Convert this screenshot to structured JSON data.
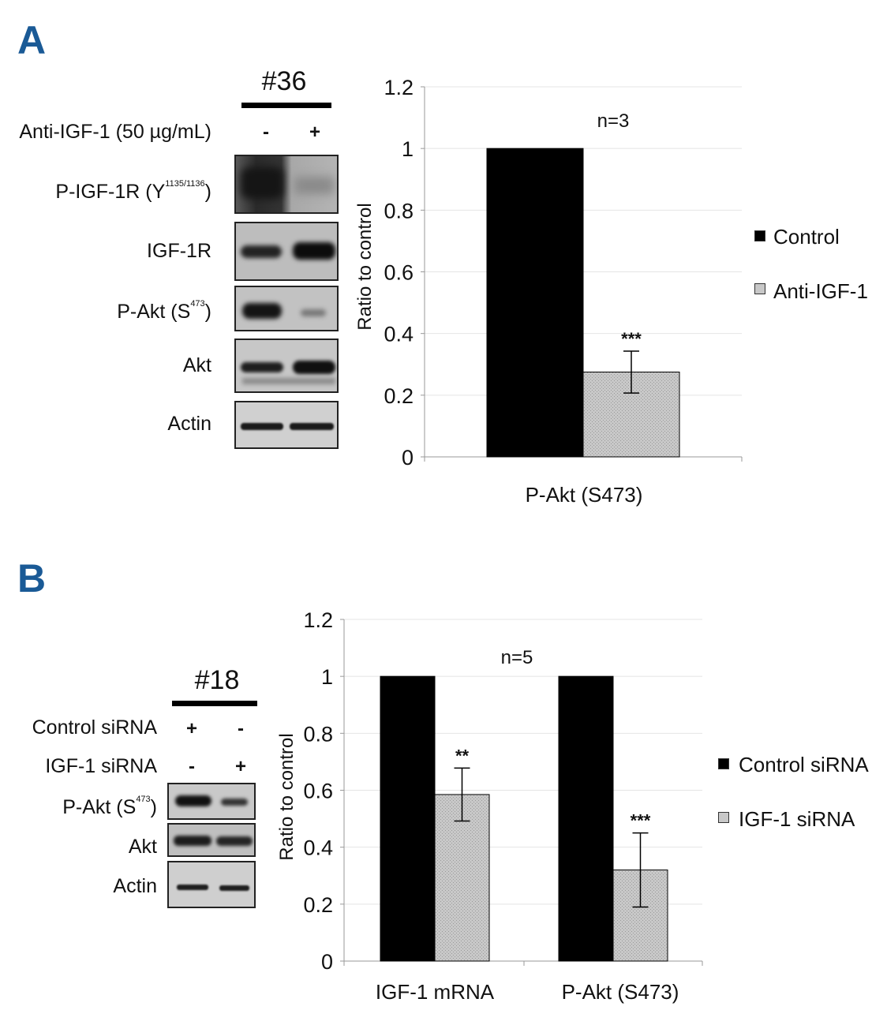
{
  "panel_a": {
    "letter": "A",
    "sample": "#36",
    "treatment_label": "Anti-IGF-1 (50 µg/mL)",
    "signs": [
      "-",
      "+"
    ],
    "rows": [
      {
        "name": "P-IGF-1R (Y",
        "sup": "1135/1136",
        "tail": ")"
      },
      {
        "name": "IGF-1R",
        "sup": "",
        "tail": ""
      },
      {
        "name": "P-Akt (S",
        "sup": "473",
        "tail": ")"
      },
      {
        "name": "Akt",
        "sup": "",
        "tail": ""
      },
      {
        "name": "Actin",
        "sup": "",
        "tail": ""
      }
    ]
  },
  "panel_b": {
    "letter": "B",
    "sample": "#18",
    "treatments": [
      {
        "label": "Control siRNA",
        "signs": [
          "+",
          "-"
        ]
      },
      {
        "label": "IGF-1 siRNA",
        "signs": [
          "-",
          "+"
        ]
      }
    ],
    "rows": [
      {
        "name": "P-Akt (S",
        "sup": "473",
        "tail": ")"
      },
      {
        "name": "Akt",
        "sup": "",
        "tail": ""
      },
      {
        "name": "Actin",
        "sup": "",
        "tail": ""
      }
    ]
  },
  "colors": {
    "control": "#000000",
    "treated": "#c8c8c8",
    "panel_letter": "#1a5a96"
  },
  "chart_data": [
    {
      "type": "bar",
      "ylabel": "Ratio to control",
      "ylim": [
        0,
        1.2
      ],
      "yticks": [
        0,
        0.2,
        0.4,
        0.6,
        0.8,
        1,
        1.2
      ],
      "ytick_labels": [
        "0",
        "0.2",
        "0.4",
        "0.6",
        "0.8",
        "1",
        "1.2"
      ],
      "annotation": "n=3",
      "categories": [
        "P-Akt (S473)"
      ],
      "series": [
        {
          "name": "Control",
          "values": [
            1.0
          ],
          "errors": [
            0
          ]
        },
        {
          "name": "Anti-IGF-1",
          "values": [
            0.275
          ],
          "errors": [
            0.068
          ]
        }
      ],
      "significance": [
        [
          ""
        ],
        [
          "***"
        ]
      ],
      "legend": "right"
    },
    {
      "type": "bar",
      "ylabel": "Ratio to control",
      "ylim": [
        0,
        1.2
      ],
      "yticks": [
        0,
        0.2,
        0.4,
        0.6,
        0.8,
        1,
        1.2
      ],
      "ytick_labels": [
        "0",
        "0.2",
        "0.4",
        "0.6",
        "0.8",
        "1",
        "1.2"
      ],
      "annotation": "n=5",
      "categories": [
        "IGF-1 mRNA",
        "P-Akt (S473)"
      ],
      "series": [
        {
          "name": "Control siRNA",
          "values": [
            1.0,
            1.0
          ],
          "errors": [
            0,
            0
          ]
        },
        {
          "name": "IGF-1 siRNA",
          "values": [
            0.585,
            0.32
          ],
          "errors": [
            0.093,
            0.13
          ]
        }
      ],
      "significance": [
        [
          "",
          ""
        ],
        [
          "**",
          "***"
        ]
      ],
      "legend": "right"
    }
  ]
}
